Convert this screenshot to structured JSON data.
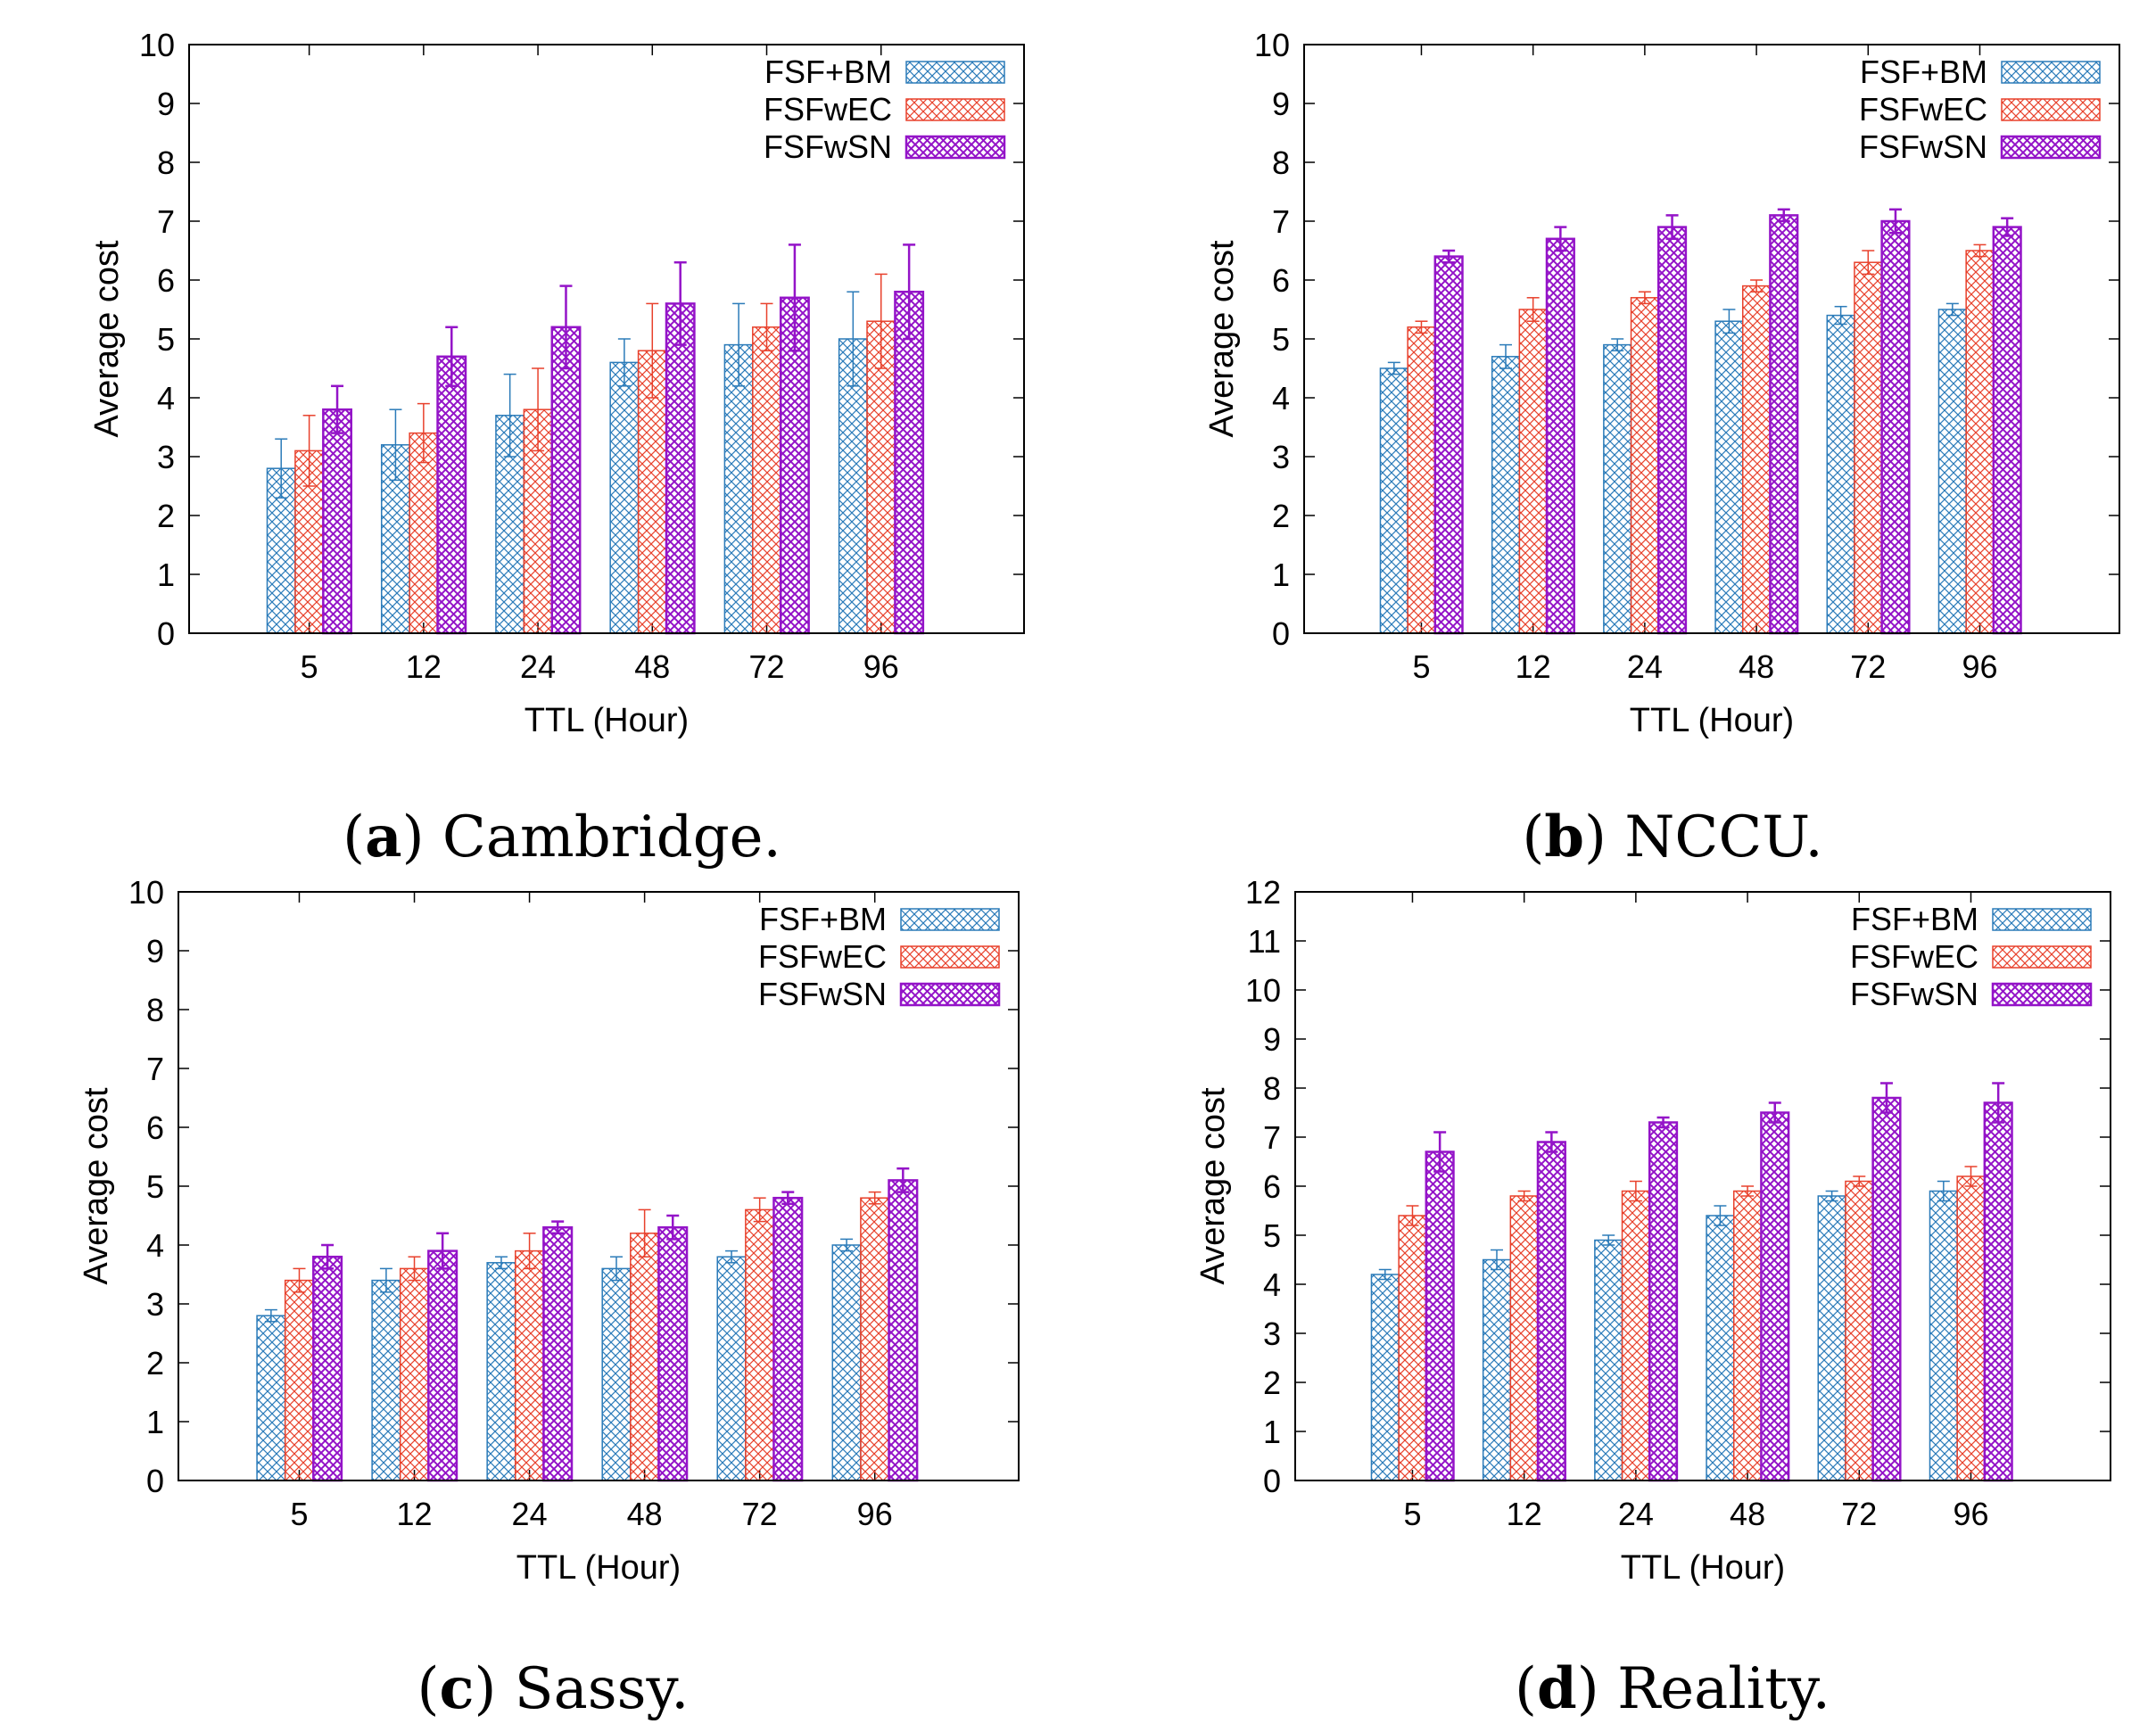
{
  "colors": {
    "FSF+BM": "#2b7bb9",
    "FSFwEC": "#e8412c",
    "FSFwSN": "#9414c8"
  },
  "chart_data": [
    {
      "type": "bar",
      "title": "",
      "caption_letter": "a",
      "caption_text": "Cambridge.",
      "xlabel": "TTL (Hour)",
      "ylabel": "Average cost",
      "ylim": [
        0,
        10
      ],
      "yticks": [
        0,
        1,
        2,
        3,
        4,
        5,
        6,
        7,
        8,
        9,
        10
      ],
      "categories": [
        "5",
        "12",
        "24",
        "48",
        "72",
        "96"
      ],
      "legend_position": "top-right",
      "series": [
        {
          "name": "FSF+BM",
          "values": [
            2.8,
            3.2,
            3.7,
            4.6,
            4.9,
            5.0
          ],
          "err": [
            0.5,
            0.6,
            0.7,
            0.4,
            0.7,
            0.8
          ]
        },
        {
          "name": "FSFwEC",
          "values": [
            3.1,
            3.4,
            3.8,
            4.8,
            5.2,
            5.3
          ],
          "err": [
            0.6,
            0.5,
            0.7,
            0.8,
            0.4,
            0.8
          ]
        },
        {
          "name": "FSFwSN",
          "values": [
            3.8,
            4.7,
            5.2,
            5.6,
            5.7,
            5.8
          ],
          "err": [
            0.4,
            0.5,
            0.7,
            0.7,
            0.9,
            0.8
          ]
        }
      ]
    },
    {
      "type": "bar",
      "title": "",
      "caption_letter": "b",
      "caption_text": "NCCU.",
      "xlabel": "TTL (Hour)",
      "ylabel": "Average cost",
      "ylim": [
        0,
        10
      ],
      "yticks": [
        0,
        1,
        2,
        3,
        4,
        5,
        6,
        7,
        8,
        9,
        10
      ],
      "categories": [
        "5",
        "12",
        "24",
        "48",
        "72",
        "96"
      ],
      "legend_position": "top-right",
      "series": [
        {
          "name": "FSF+BM",
          "values": [
            4.5,
            4.7,
            4.9,
            5.3,
            5.4,
            5.5
          ],
          "err": [
            0.1,
            0.2,
            0.1,
            0.2,
            0.15,
            0.1
          ]
        },
        {
          "name": "FSFwEC",
          "values": [
            5.2,
            5.5,
            5.7,
            5.9,
            6.3,
            6.5
          ],
          "err": [
            0.1,
            0.2,
            0.1,
            0.1,
            0.2,
            0.1
          ]
        },
        {
          "name": "FSFwSN",
          "values": [
            6.4,
            6.7,
            6.9,
            7.1,
            7.0,
            6.9
          ],
          "err": [
            0.1,
            0.2,
            0.2,
            0.1,
            0.2,
            0.15
          ]
        }
      ]
    },
    {
      "type": "bar",
      "title": "",
      "caption_letter": "c",
      "caption_text": "Sassy.",
      "xlabel": "TTL (Hour)",
      "ylabel": "Average cost",
      "ylim": [
        0,
        10
      ],
      "yticks": [
        0,
        1,
        2,
        3,
        4,
        5,
        6,
        7,
        8,
        9,
        10
      ],
      "categories": [
        "5",
        "12",
        "24",
        "48",
        "72",
        "96"
      ],
      "legend_position": "top-right",
      "series": [
        {
          "name": "FSF+BM",
          "values": [
            2.8,
            3.4,
            3.7,
            3.6,
            3.8,
            4.0
          ],
          "err": [
            0.1,
            0.2,
            0.1,
            0.2,
            0.1,
            0.1
          ]
        },
        {
          "name": "FSFwEC",
          "values": [
            3.4,
            3.6,
            3.9,
            4.2,
            4.6,
            4.8
          ],
          "err": [
            0.2,
            0.2,
            0.3,
            0.4,
            0.2,
            0.1
          ]
        },
        {
          "name": "FSFwSN",
          "values": [
            3.8,
            3.9,
            4.3,
            4.3,
            4.8,
            5.1
          ],
          "err": [
            0.2,
            0.3,
            0.1,
            0.2,
            0.1,
            0.2
          ]
        }
      ]
    },
    {
      "type": "bar",
      "title": "",
      "caption_letter": "d",
      "caption_text": "Reality.",
      "xlabel": "TTL (Hour)",
      "ylabel": "Average cost",
      "ylim": [
        0,
        12
      ],
      "yticks": [
        0,
        1,
        2,
        3,
        4,
        5,
        6,
        7,
        8,
        9,
        10,
        11,
        12
      ],
      "categories": [
        "5",
        "12",
        "24",
        "48",
        "72",
        "96"
      ],
      "legend_position": "top-right",
      "series": [
        {
          "name": "FSF+BM",
          "values": [
            4.2,
            4.5,
            4.9,
            5.4,
            5.8,
            5.9
          ],
          "err": [
            0.1,
            0.2,
            0.1,
            0.2,
            0.1,
            0.2
          ]
        },
        {
          "name": "FSFwEC",
          "values": [
            5.4,
            5.8,
            5.9,
            5.9,
            6.1,
            6.2
          ],
          "err": [
            0.2,
            0.1,
            0.2,
            0.1,
            0.1,
            0.2
          ]
        },
        {
          "name": "FSFwSN",
          "values": [
            6.7,
            6.9,
            7.3,
            7.5,
            7.8,
            7.7
          ],
          "err": [
            0.4,
            0.2,
            0.1,
            0.2,
            0.3,
            0.4
          ]
        }
      ]
    }
  ]
}
